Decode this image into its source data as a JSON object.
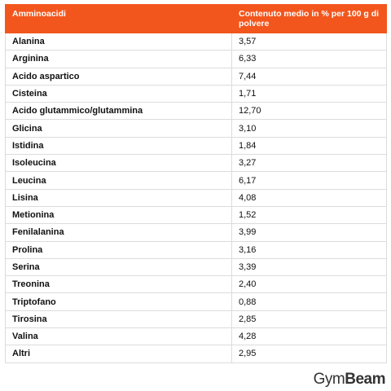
{
  "table": {
    "header": [
      "Amminoacidi",
      "Contenuto medio in % per 100 g di polvere"
    ],
    "rows": [
      [
        "Alanina",
        "3,57"
      ],
      [
        "Arginina",
        "6,33"
      ],
      [
        "Acido aspartico",
        "7,44"
      ],
      [
        "Cisteina",
        "1,71"
      ],
      [
        "Acido glutammico/glutammina",
        "12,70"
      ],
      [
        "Glicina",
        "3,10"
      ],
      [
        "Istidina",
        "1,84"
      ],
      [
        "Isoleucina",
        "3,27"
      ],
      [
        "Leucina",
        "6,17"
      ],
      [
        "Lisina",
        "4,08"
      ],
      [
        "Metionina",
        "1,52"
      ],
      [
        "Fenilalanina",
        "3,99"
      ],
      [
        "Prolina",
        "3,16"
      ],
      [
        "Serina",
        "3,39"
      ],
      [
        "Treonina",
        "2,40"
      ],
      [
        "Triptofano",
        "0,88"
      ],
      [
        "Tirosina",
        "2,85"
      ],
      [
        "Valina",
        "4,28"
      ],
      [
        "Altri",
        "2,95"
      ]
    ]
  },
  "logo": {
    "part1": "Gym",
    "part2": "Beam"
  }
}
